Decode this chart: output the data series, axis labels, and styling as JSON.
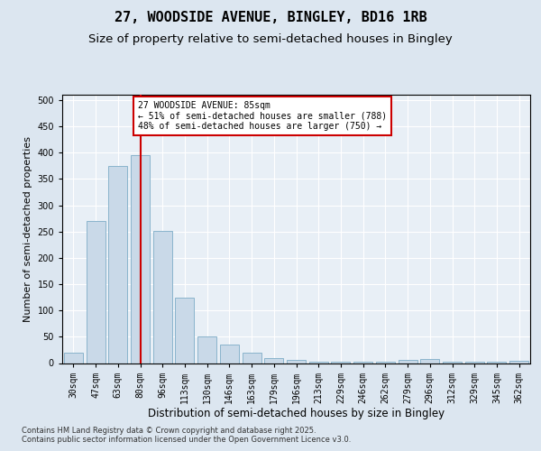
{
  "title1": "27, WOODSIDE AVENUE, BINGLEY, BD16 1RB",
  "title2": "Size of property relative to semi-detached houses in Bingley",
  "xlabel": "Distribution of semi-detached houses by size in Bingley",
  "ylabel": "Number of semi-detached properties",
  "categories": [
    "30sqm",
    "47sqm",
    "63sqm",
    "80sqm",
    "96sqm",
    "113sqm",
    "130sqm",
    "146sqm",
    "163sqm",
    "179sqm",
    "196sqm",
    "213sqm",
    "229sqm",
    "246sqm",
    "262sqm",
    "279sqm",
    "296sqm",
    "312sqm",
    "329sqm",
    "345sqm",
    "362sqm"
  ],
  "values": [
    20,
    270,
    375,
    395,
    252,
    125,
    50,
    35,
    20,
    10,
    6,
    3,
    2,
    2,
    2,
    6,
    8,
    3,
    2,
    2,
    4
  ],
  "bar_color": "#c9d9e8",
  "bar_edge_color": "#8ab4cc",
  "highlight_index": 3,
  "highlight_line_color": "#cc0000",
  "annotation_text": "27 WOODSIDE AVENUE: 85sqm\n← 51% of semi-detached houses are smaller (788)\n48% of semi-detached houses are larger (750) →",
  "annotation_box_color": "#ffffff",
  "annotation_box_edge_color": "#cc0000",
  "ylim": [
    0,
    510
  ],
  "yticks": [
    0,
    50,
    100,
    150,
    200,
    250,
    300,
    350,
    400,
    450,
    500
  ],
  "bg_color": "#dce6f0",
  "plot_bg_color": "#e8eff6",
  "footer_text": "Contains HM Land Registry data © Crown copyright and database right 2025.\nContains public sector information licensed under the Open Government Licence v3.0.",
  "title1_fontsize": 11,
  "title2_fontsize": 9.5,
  "tick_fontsize": 7,
  "label_fontsize": 8.5,
  "ylabel_fontsize": 8,
  "footer_fontsize": 6
}
